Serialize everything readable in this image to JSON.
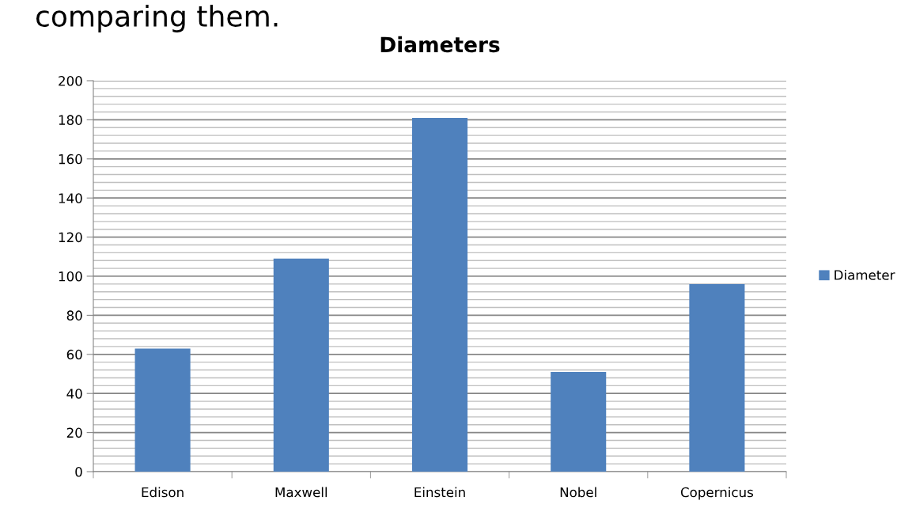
{
  "chart_data": {
    "type": "bar",
    "title": "Diameters",
    "annotations": [
      "comparing them."
    ],
    "categories": [
      "Edison",
      "Maxwell",
      "Einstein",
      "Nobel",
      "Copernicus"
    ],
    "series": [
      {
        "name": "Diameter",
        "color": "#4f81bd",
        "values": [
          63,
          109,
          181,
          51,
          96
        ]
      }
    ],
    "ylim": [
      0,
      200
    ],
    "yticks": [
      0,
      20,
      40,
      60,
      80,
      100,
      120,
      140,
      160,
      180,
      200
    ],
    "grid": "y",
    "legend": "right"
  }
}
